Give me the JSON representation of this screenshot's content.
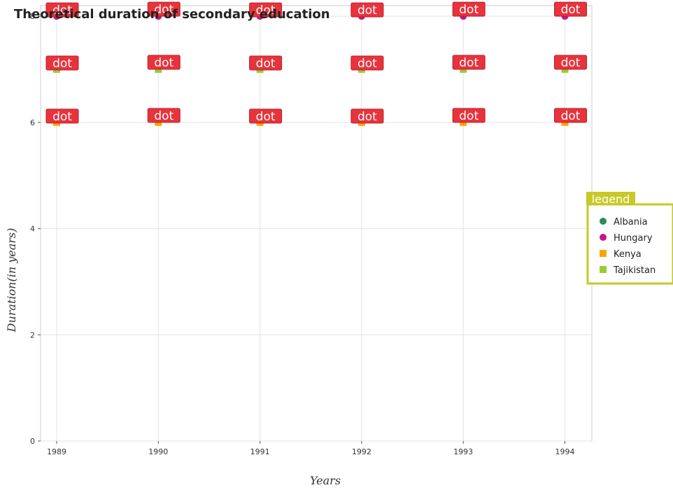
{
  "chart_data": {
    "type": "scatter",
    "title": "Theoretical duration of secondary education",
    "xlabel": "Years",
    "ylabel": "Duration(in years)",
    "categories": [
      "1989",
      "1990",
      "1991",
      "1992",
      "1993",
      "1994"
    ],
    "ylim": [
      0,
      8.2
    ],
    "yticks": [
      0,
      2,
      4,
      6,
      8
    ],
    "grid": true,
    "legend": {
      "title": "legend",
      "position": "right"
    },
    "data_label_text": "dot",
    "series": [
      {
        "name": "Albania",
        "color": "#2e8b57",
        "values": [
          8,
          8,
          8,
          8,
          8,
          8
        ]
      },
      {
        "name": "Hungary",
        "color": "#c71585",
        "values": [
          8,
          8,
          8,
          8,
          8,
          8
        ]
      },
      {
        "name": "Kenya",
        "color": "#ffa500",
        "values": [
          6,
          6,
          6,
          6,
          6,
          6
        ]
      },
      {
        "name": "Tajikistan",
        "color": "#9acd32",
        "values": [
          7,
          7,
          7,
          7,
          7,
          7
        ]
      }
    ]
  }
}
